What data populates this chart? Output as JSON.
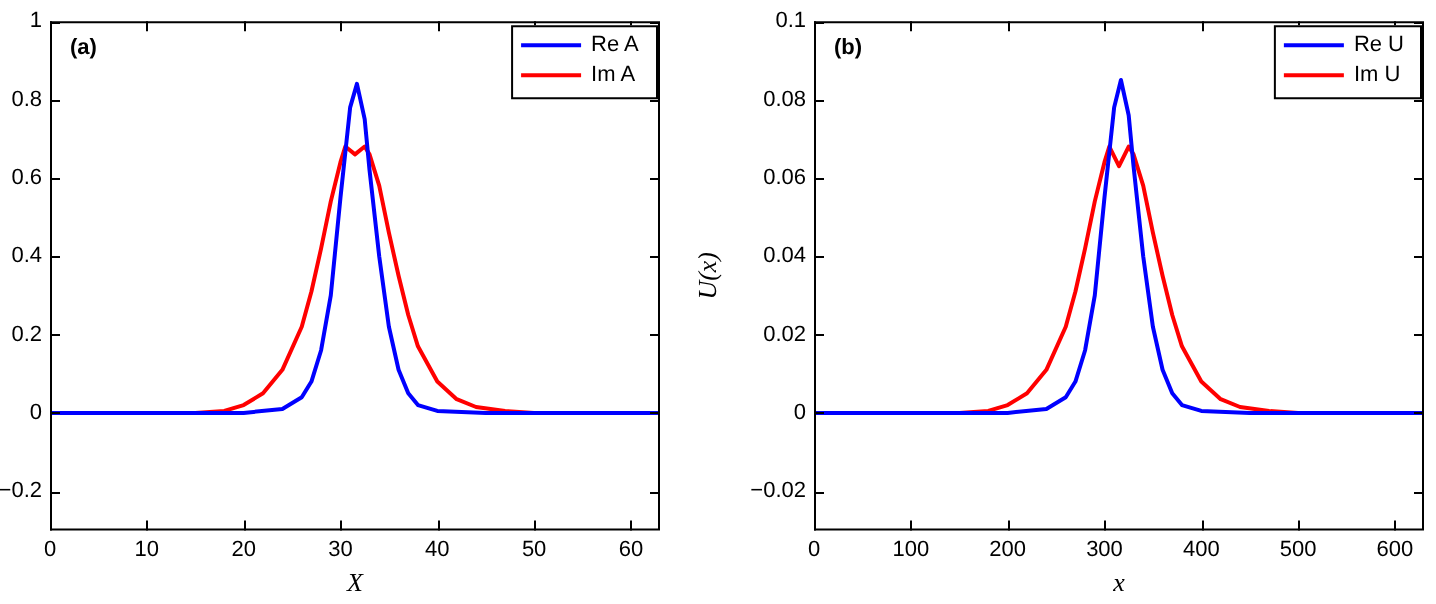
{
  "chart_data": [
    {
      "type": "line",
      "xlabel": "X",
      "annotations": [
        "(a)"
      ],
      "xlim": [
        0,
        63
      ],
      "ylim": [
        -0.3,
        1
      ],
      "xticks": [
        0,
        10,
        20,
        30,
        40,
        50,
        60
      ],
      "yticks": [
        -0.2,
        0,
        0.2,
        0.4,
        0.6,
        0.8,
        1
      ],
      "grid": false,
      "legend": "top right",
      "marker": "none",
      "line_style": "solid",
      "series": [
        {
          "name": "Re A",
          "color": "#0000ff",
          "x": [
            0,
            20,
            24,
            26,
            27,
            28,
            29,
            30,
            31,
            31.7,
            32.5,
            33,
            34,
            35,
            36,
            37,
            38,
            40,
            45,
            63
          ],
          "values": [
            0,
            0,
            0.01,
            0.04,
            0.08,
            0.16,
            0.3,
            0.55,
            0.78,
            0.84,
            0.75,
            0.62,
            0.4,
            0.22,
            0.11,
            0.05,
            0.02,
            0.005,
            0,
            0
          ]
        },
        {
          "name": "Im A",
          "color": "#ff0000",
          "x": [
            0,
            15,
            18,
            20,
            22,
            24,
            26,
            27,
            28,
            29,
            30,
            30.5,
            31.5,
            32.5,
            33,
            34,
            35,
            36,
            37,
            38,
            40,
            42,
            44,
            47,
            50,
            63
          ],
          "values": [
            0,
            0,
            0.005,
            0.02,
            0.05,
            0.11,
            0.22,
            0.31,
            0.42,
            0.54,
            0.64,
            0.68,
            0.66,
            0.68,
            0.66,
            0.58,
            0.46,
            0.35,
            0.25,
            0.17,
            0.08,
            0.035,
            0.015,
            0.005,
            0,
            0
          ]
        }
      ]
    },
    {
      "type": "line",
      "xlabel": "x",
      "ylabel": "U(x)",
      "annotations": [
        "(b)"
      ],
      "xlim": [
        0,
        630
      ],
      "ylim": [
        -0.03,
        0.1
      ],
      "xticks": [
        0,
        100,
        200,
        300,
        400,
        500,
        600
      ],
      "yticks": [
        -0.02,
        0,
        0.02,
        0.04,
        0.06,
        0.08,
        0.1
      ],
      "grid": false,
      "legend": "top right",
      "marker": "none",
      "line_style": "solid",
      "series": [
        {
          "name": "Re U",
          "color": "#0000ff",
          "x": [
            0,
            200,
            240,
            260,
            270,
            280,
            290,
            300,
            310,
            317,
            325,
            330,
            340,
            350,
            360,
            370,
            380,
            400,
            450,
            630
          ],
          "values": [
            0,
            0,
            0.001,
            0.004,
            0.008,
            0.016,
            0.03,
            0.055,
            0.078,
            0.085,
            0.076,
            0.063,
            0.04,
            0.022,
            0.011,
            0.005,
            0.002,
            0.0005,
            0,
            0
          ]
        },
        {
          "name": "Im U",
          "color": "#ff0000",
          "x": [
            0,
            150,
            180,
            200,
            220,
            240,
            260,
            270,
            280,
            290,
            300,
            305,
            315,
            325,
            330,
            340,
            350,
            360,
            370,
            380,
            400,
            420,
            440,
            470,
            500,
            630
          ],
          "values": [
            0,
            0,
            0.0005,
            0.002,
            0.005,
            0.011,
            0.022,
            0.031,
            0.042,
            0.054,
            0.064,
            0.068,
            0.063,
            0.068,
            0.066,
            0.058,
            0.046,
            0.035,
            0.025,
            0.017,
            0.008,
            0.0035,
            0.0015,
            0.0005,
            0,
            0
          ]
        }
      ]
    }
  ]
}
